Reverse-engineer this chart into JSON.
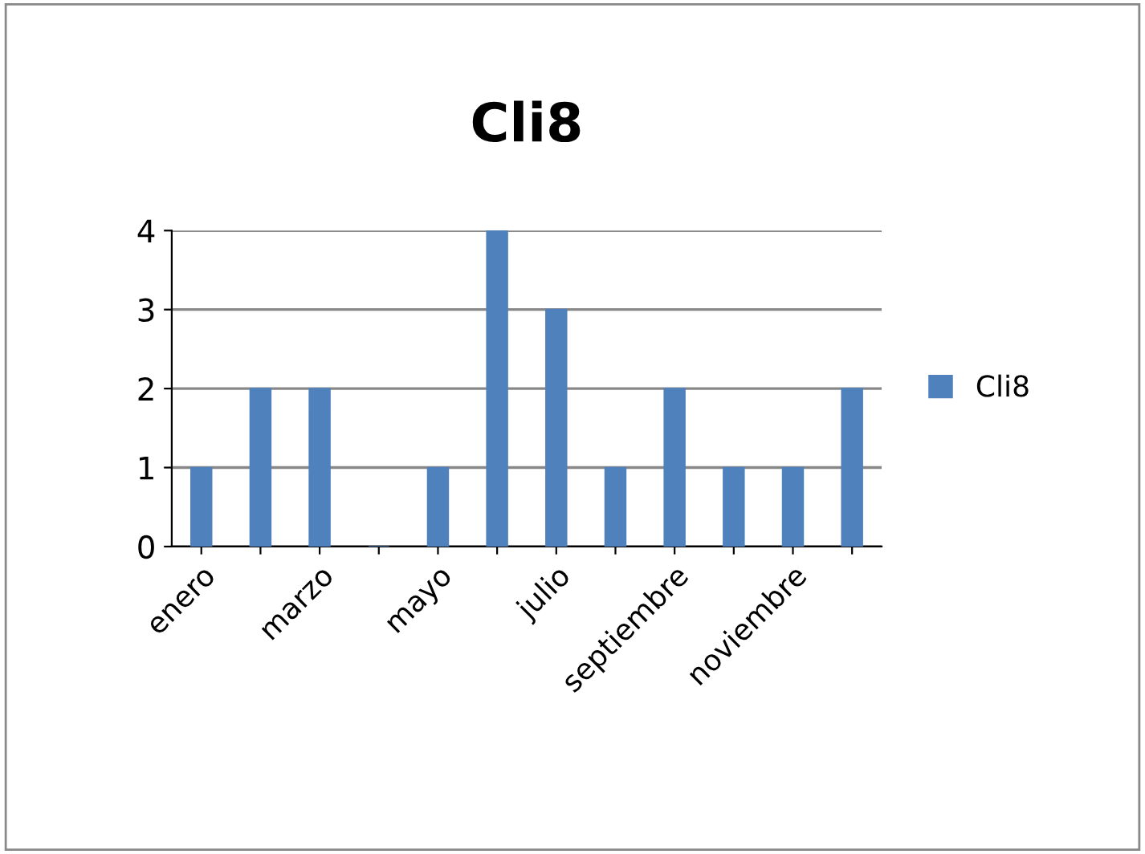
{
  "chart_data": {
    "type": "bar",
    "title": "Cli8",
    "categories": [
      "enero",
      null,
      "marzo",
      null,
      "mayo",
      null,
      "julio",
      null,
      "septiembre",
      null,
      "noviembre",
      null
    ],
    "series": [
      {
        "name": "Cli8",
        "color": "#4f81bd",
        "values": [
          1,
          2,
          2,
          0,
          1,
          4,
          3,
          1,
          2,
          1,
          1,
          2
        ]
      }
    ],
    "ylim": [
      0,
      4
    ],
    "yticks": [
      0,
      1,
      2,
      3,
      4
    ],
    "grid": "y",
    "legend": "right"
  }
}
